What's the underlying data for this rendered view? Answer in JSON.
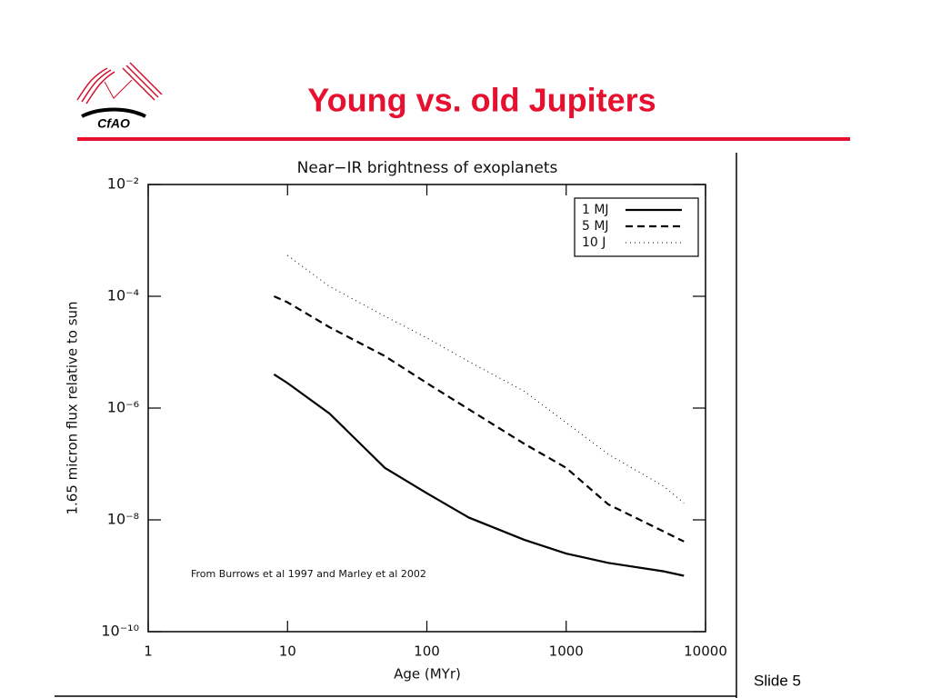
{
  "slide": {
    "title": "Young vs. old Jupiters",
    "logo": "CfAO",
    "footer": "Slide 5"
  },
  "chart_data": {
    "type": "line",
    "title": "Near−IR brightness of exoplanets",
    "x_label": "Age (MYr)",
    "y_label": "1.65 micron flux relative to sun",
    "annotation": "From Burrows et al 1997 and Marley et al 2002",
    "x": [
      8,
      10,
      20,
      50,
      100,
      200,
      500,
      1000,
      2000,
      5000,
      7000
    ],
    "series": [
      {
        "name": "1 MJ",
        "color": "#000000",
        "dash": "solid",
        "values": [
          4e-06,
          2.8e-06,
          8e-07,
          8.5e-08,
          3e-08,
          1.1e-08,
          4.4e-09,
          2.5e-09,
          1.7e-09,
          1.2e-09,
          1e-09
        ]
      },
      {
        "name": "5 MJ",
        "color": "#000000",
        "dash": "dashed",
        "values": [
          0.0001,
          7.8e-05,
          2.8e-05,
          8.5e-06,
          2.8e-06,
          9.5e-07,
          2.3e-07,
          8.5e-08,
          1.9e-08,
          6.2e-09,
          4.1e-09
        ]
      },
      {
        "name": "10 J",
        "color": "#000000",
        "dash": "dotted",
        "values": [
          null,
          0.00054,
          0.00015,
          4.4e-05,
          1.8e-05,
          6.8e-06,
          2e-06,
          5.5e-07,
          1.5e-07,
          4e-08,
          2e-08
        ]
      }
    ],
    "x_log": true,
    "y_log": true,
    "xlim": [
      1,
      10000
    ],
    "xticks": [
      1,
      10,
      100,
      1000,
      10000
    ],
    "ylim": [
      1e-10,
      0.01
    ],
    "yticks": [
      {
        "value": 1e-10,
        "label": "10⁻¹⁰"
      },
      {
        "value": 1e-08,
        "label": "10⁻⁸"
      },
      {
        "value": 1e-06,
        "label": "10⁻⁶"
      },
      {
        "value": 0.0001,
        "label": "10⁻⁴"
      },
      {
        "value": 0.01,
        "label": "10⁻²"
      }
    ],
    "legend": "top-right"
  }
}
